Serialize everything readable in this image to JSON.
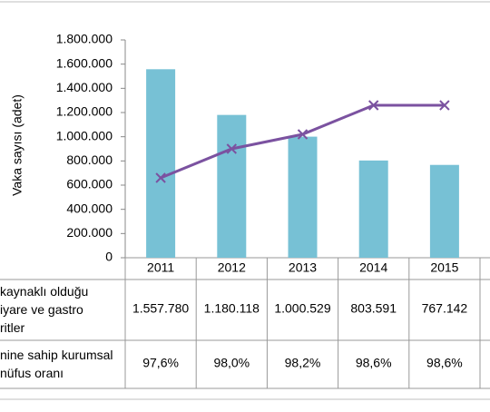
{
  "chart_data": {
    "type": "bar_line_table",
    "y_label": "Vaka sayısı (adet)",
    "categories": [
      "2011",
      "2012",
      "2013",
      "2014",
      "2015"
    ],
    "ylim": [
      0,
      1800000
    ],
    "yticks": [
      0,
      {
        "value": 200000,
        "label": "200.000"
      },
      {
        "value": 400000,
        "label": "400.000"
      },
      {
        "value": 600000,
        "label": "600.000"
      },
      {
        "value": 800000,
        "label": "800.000"
      },
      {
        "value": 1000000,
        "label": "1.000.000"
      },
      {
        "value": 1200000,
        "label": "1.200.000"
      },
      {
        "value": 1400000,
        "label": "1.400.000"
      },
      {
        "value": 1600000,
        "label": "1.600.000"
      },
      {
        "value": 1800000,
        "label": "1.800.000"
      }
    ],
    "y2lim": [
      96.5,
      99.5
    ],
    "series": [
      {
        "name": "kaynaklı olduğu\niyare ve gastro\nritler",
        "type": "bar",
        "color": "#77c1d5",
        "values": [
          1557780,
          1180118,
          1000529,
          803591,
          767142
        ],
        "value_labels": [
          "1.557.780",
          "1.180.118",
          "1.000.529",
          "803.591",
          "767.142"
        ]
      },
      {
        "name": "nine sahip kurumsal\nnüfus oranı",
        "type": "line",
        "axis": "y2",
        "color": "#7b52a0",
        "values": [
          97.6,
          98.0,
          98.2,
          98.6,
          98.6
        ],
        "value_labels": [
          "97,6%",
          "98,0%",
          "98,2%",
          "98,6%",
          "98,6%"
        ]
      }
    ]
  }
}
